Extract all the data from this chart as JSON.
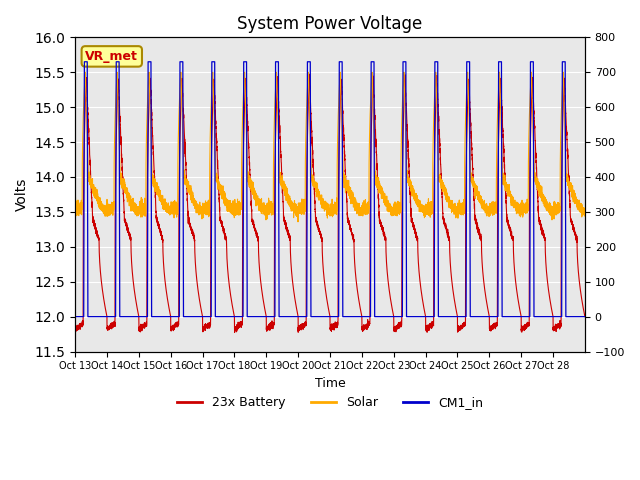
{
  "title": "System Power Voltage",
  "xlabel": "Time",
  "ylabel_left": "Volts",
  "ylim_left": [
    11.5,
    16.0
  ],
  "ylim_right": [
    -100,
    800
  ],
  "yticks_left": [
    11.5,
    12.0,
    12.5,
    13.0,
    13.5,
    14.0,
    14.5,
    15.0,
    15.5,
    16.0
  ],
  "yticks_right": [
    -100,
    0,
    100,
    200,
    300,
    400,
    500,
    600,
    700,
    800
  ],
  "xtick_labels": [
    "Oct 13",
    "Oct 14",
    "Oct 15",
    "Oct 16",
    "Oct 17",
    "Oct 18",
    "Oct 19",
    "Oct 20",
    "Oct 21",
    "Oct 22",
    "Oct 23",
    "Oct 24",
    "Oct 25",
    "Oct 26",
    "Oct 27",
    "Oct 28"
  ],
  "n_days": 16,
  "background_color": "#ffffff",
  "plot_bg_color": "#e8e8e8",
  "grid_color": "#ffffff",
  "battery_color": "#cc0000",
  "solar_color": "#ffaa00",
  "cm1_color": "#0000cc",
  "vr_met_box_color": "#ffff99",
  "vr_met_text_color": "#cc0000",
  "legend_labels": [
    "23x Battery",
    "Solar",
    "CM1_in"
  ]
}
